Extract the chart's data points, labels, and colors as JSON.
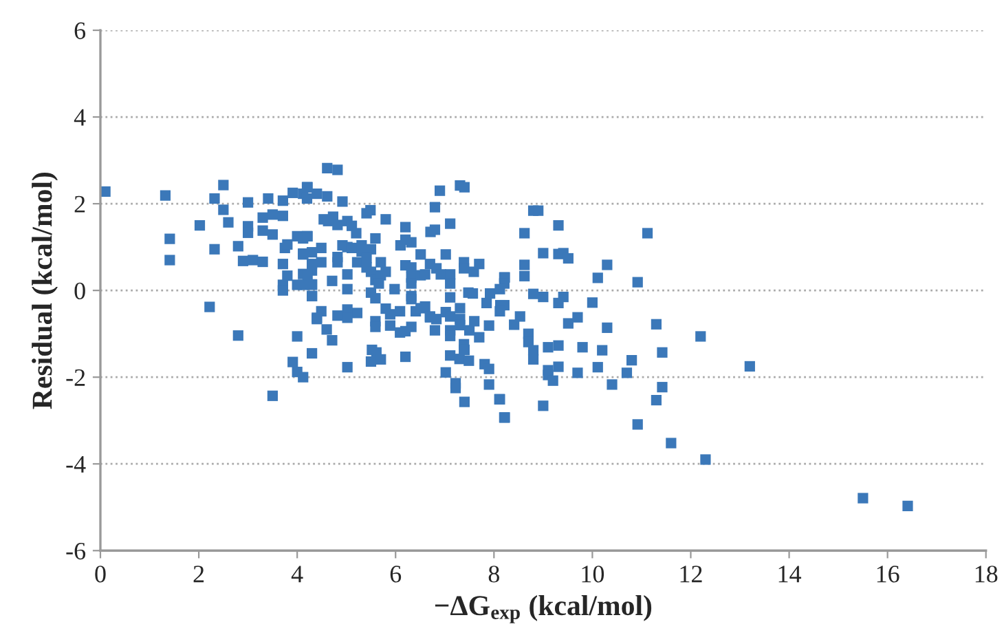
{
  "chart_data": {
    "type": "scatter",
    "xlabel": "−ΔG$_{exp}$ (kcal/mol)",
    "ylabel": "Residual (kcal/mol)",
    "xlim": [
      0,
      18
    ],
    "xticks": [
      0,
      2,
      4,
      6,
      8,
      10,
      12,
      14,
      16,
      18
    ],
    "ylim": [
      -6,
      6
    ],
    "yticks": [
      -6,
      -4,
      -2,
      0,
      2,
      4,
      6
    ],
    "grid": "y",
    "marker": "square",
    "series": [
      {
        "color": "#3b78b9",
        "x": [
          0.1,
          1.32,
          2.5,
          2.32,
          2.5,
          2.6,
          2.02,
          1.41,
          1.41,
          2.32,
          2.8,
          3.0,
          3.41,
          3.71,
          3.91,
          4.2,
          4.12,
          4.2,
          3.0,
          3.0,
          3.3,
          3.3,
          3.5,
          3.71,
          3.5,
          4.0,
          4.2,
          4.12,
          3.75,
          3.8,
          4.12,
          2.9,
          3.1,
          3.3,
          3.71,
          3.8,
          4.12,
          4.0,
          4.12,
          4.3,
          3.71,
          3.71,
          4.3,
          2.22,
          2.8,
          4.0,
          4.3,
          3.91,
          4.0,
          4.12,
          3.5,
          4.4,
          4.61,
          4.82,
          4.21,
          4.4,
          4.61,
          4.92,
          4.54,
          4.73,
          4.82,
          4.63,
          5.02,
          5.11,
          5.2,
          5.41,
          5.49,
          5.8,
          4.21,
          4.49,
          4.12,
          4.3,
          4.92,
          5.02,
          5.11,
          5.31,
          5.31,
          5.5,
          4.82,
          4.82,
          4.3,
          4.49,
          4.3,
          4.21,
          4.3,
          4.3,
          4.71,
          5.02,
          5.02,
          5.22,
          5.41,
          5.5,
          5.59,
          5.7,
          5.8,
          5.66,
          5.59,
          5.41,
          5.7,
          5.98,
          6.2,
          6.1,
          6.2,
          6.32,
          6.2,
          6.32,
          6.32,
          6.32,
          6.51,
          6.6,
          6.51,
          6.32,
          6.32,
          6.7,
          6.83,
          6.92,
          7.11,
          7.02,
          7.11,
          6.71,
          6.8,
          6.8,
          6.9,
          7.31,
          7.4,
          7.39,
          7.39,
          7.59,
          7.7,
          7.48,
          7.57,
          7.11,
          7.11,
          6.41,
          6.51,
          6.6,
          6.7,
          6.83,
          7.02,
          7.11,
          7.11,
          7.11,
          7.31,
          7.31,
          7.31,
          7.39,
          7.39,
          7.5,
          7.6,
          7.7,
          7.9,
          7.85,
          7.92,
          8.13,
          8.22,
          6.09,
          5.89,
          5.89,
          5.59,
          5.59,
          5.8,
          5.5,
          5.59,
          5.22,
          5.02,
          5.02,
          4.82,
          4.49,
          4.4,
          4.6,
          4.71,
          5.02,
          5.52,
          5.61,
          5.5,
          5.7,
          6.2,
          7.11,
          7.3,
          7.4,
          7.49,
          7.02,
          7.22,
          7.22,
          7.4,
          7.81,
          7.9,
          7.9,
          8.11,
          8.22,
          6.09,
          6.2,
          6.32,
          6.7,
          6.8,
          8.8,
          8.9,
          9.31,
          8.62,
          11.12,
          9.0,
          9.31,
          9.41,
          9.51,
          8.62,
          8.62,
          10.3,
          10.11,
          10.92,
          8.21,
          8.21,
          8.12,
          8.8,
          9.0,
          9.41,
          9.31,
          10.0,
          8.21,
          8.12,
          8.53,
          8.41,
          9.51,
          9.7,
          10.3,
          11.3,
          12.2,
          8.7,
          8.7,
          8.8,
          8.8,
          9.1,
          9.31,
          9.8,
          10.2,
          11.42,
          9.1,
          9.1,
          9.2,
          9.31,
          9.7,
          10.11,
          10.8,
          10.7,
          10.4,
          11.42,
          11.3,
          8.12,
          8.21,
          9.0,
          10.92,
          11.6,
          12.3,
          13.2,
          15.5,
          16.41
        ],
        "values": [
          2.28,
          2.19,
          2.43,
          2.12,
          1.86,
          1.57,
          1.5,
          1.19,
          0.7,
          0.95,
          1.02,
          2.03,
          2.12,
          2.07,
          2.25,
          2.38,
          2.23,
          2.12,
          1.48,
          1.33,
          1.68,
          1.38,
          1.75,
          1.72,
          1.29,
          1.25,
          1.25,
          1.2,
          0.98,
          1.06,
          0.85,
          0.68,
          0.7,
          0.66,
          0.61,
          0.34,
          0.38,
          0.13,
          0.13,
          0.13,
          0.13,
          0.0,
          -0.13,
          -0.38,
          -1.04,
          -1.06,
          -1.45,
          -1.65,
          -1.88,
          -2.0,
          -2.43,
          -0.66,
          2.82,
          2.78,
          2.38,
          2.23,
          2.17,
          2.05,
          1.64,
          1.7,
          1.51,
          1.6,
          1.6,
          1.49,
          1.32,
          1.78,
          1.85,
          1.64,
          1.25,
          0.98,
          0.83,
          0.88,
          1.04,
          1.0,
          0.98,
          1.04,
          0.9,
          0.95,
          0.77,
          0.65,
          0.61,
          0.65,
          0.46,
          0.35,
          0.14,
          -0.13,
          0.22,
          0.37,
          0.03,
          0.65,
          0.53,
          0.43,
          0.24,
          0.35,
          0.43,
          0.16,
          1.2,
          0.75,
          0.65,
          0.03,
          1.46,
          1.04,
          1.17,
          1.11,
          0.58,
          0.53,
          0.3,
          0.16,
          0.35,
          0.37,
          0.83,
          -0.13,
          -0.2,
          0.61,
          0.51,
          0.37,
          0.37,
          0.83,
          1.54,
          1.35,
          1.4,
          1.92,
          2.3,
          2.42,
          2.38,
          0.65,
          0.51,
          0.43,
          0.61,
          -0.05,
          -0.07,
          0.16,
          -0.16,
          -0.48,
          -0.41,
          -0.37,
          -0.6,
          -0.66,
          -0.5,
          -0.6,
          -0.92,
          -1.05,
          -0.41,
          -0.66,
          -0.8,
          -1.24,
          -1.37,
          -0.92,
          -0.71,
          -1.08,
          -0.81,
          -0.29,
          -0.07,
          -0.34,
          0.3,
          -0.48,
          -0.55,
          -0.81,
          -0.71,
          -0.84,
          -0.42,
          -0.05,
          -0.18,
          -0.52,
          -0.44,
          -0.63,
          -0.58,
          -0.48,
          -0.63,
          -0.9,
          -1.15,
          -1.77,
          -1.37,
          -1.43,
          -1.64,
          -1.59,
          -1.53,
          -1.5,
          -1.58,
          -1.37,
          -1.62,
          -1.89,
          -2.14,
          -2.25,
          -2.57,
          -1.7,
          -1.81,
          -2.17,
          -2.51,
          -2.93,
          -0.97,
          -0.94,
          -0.84,
          -0.62,
          -0.92,
          1.84,
          1.84,
          1.5,
          1.32,
          1.32,
          0.86,
          0.84,
          0.86,
          0.74,
          0.59,
          0.33,
          0.59,
          0.29,
          0.19,
          0.3,
          0.16,
          0.03,
          -0.08,
          -0.15,
          -0.15,
          -0.29,
          -0.28,
          -0.34,
          -0.48,
          -0.6,
          -0.79,
          -0.76,
          -0.62,
          -0.86,
          -0.78,
          -1.06,
          -1.0,
          -1.19,
          -1.38,
          -1.59,
          -1.31,
          -1.27,
          -1.31,
          -1.38,
          -1.43,
          -1.84,
          -1.95,
          -2.08,
          -1.76,
          -1.9,
          -1.77,
          -1.61,
          -1.9,
          -2.17,
          -2.23,
          -2.53,
          -2.51,
          -2.93,
          -2.66,
          -3.09,
          -3.52,
          -3.9,
          -1.75,
          -4.79,
          -4.97
        ]
      }
    ]
  }
}
